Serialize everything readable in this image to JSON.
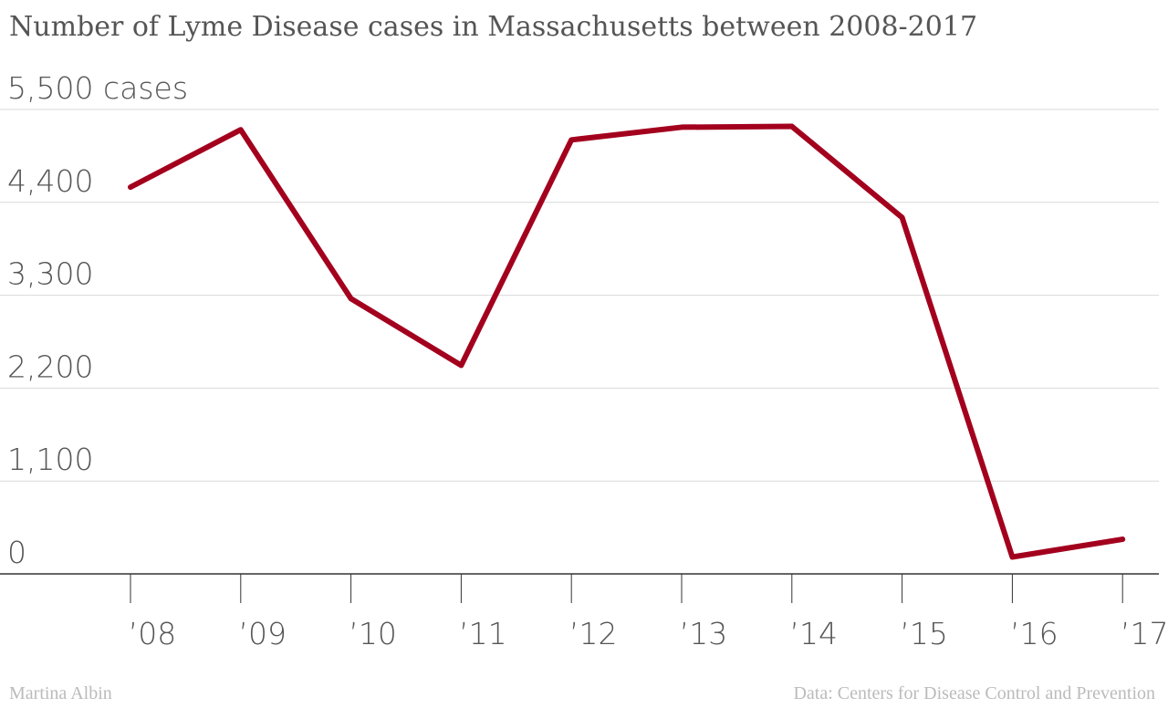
{
  "chart_data": {
    "type": "line",
    "title": "Number of Lyme Disease cases in Massachusetts between 2008-2017",
    "xlabel": "",
    "ylabel": "",
    "y_unit_label": "5,500 cases",
    "categories": [
      "’08",
      "’09",
      "’10",
      "’11",
      "’12",
      "’13",
      "’14",
      "’15",
      "’16",
      "’17"
    ],
    "series": [
      {
        "values": [
          4580,
          5260,
          3260,
          2470,
          5140,
          5290,
          5300,
          4220,
          200,
          410
        ],
        "color": "#a3001e"
      }
    ],
    "y_ticks": [
      0,
      1100,
      2200,
      3300,
      4400,
      5500
    ],
    "y_tick_labels": [
      "0",
      "1,100",
      "2,200",
      "3,300",
      "4,400",
      "5,500 cases"
    ],
    "ylim": [
      0,
      5500
    ],
    "grid": true,
    "legend": "none"
  },
  "credits": {
    "author": "Martina Albin",
    "source": "Data: Centers for Disease Control and Prevention"
  },
  "colors": {
    "line": "#a3001e",
    "grid": "#d9d9d9",
    "axis": "#333333",
    "text": "#555555",
    "footer": "#bbbbbb"
  }
}
